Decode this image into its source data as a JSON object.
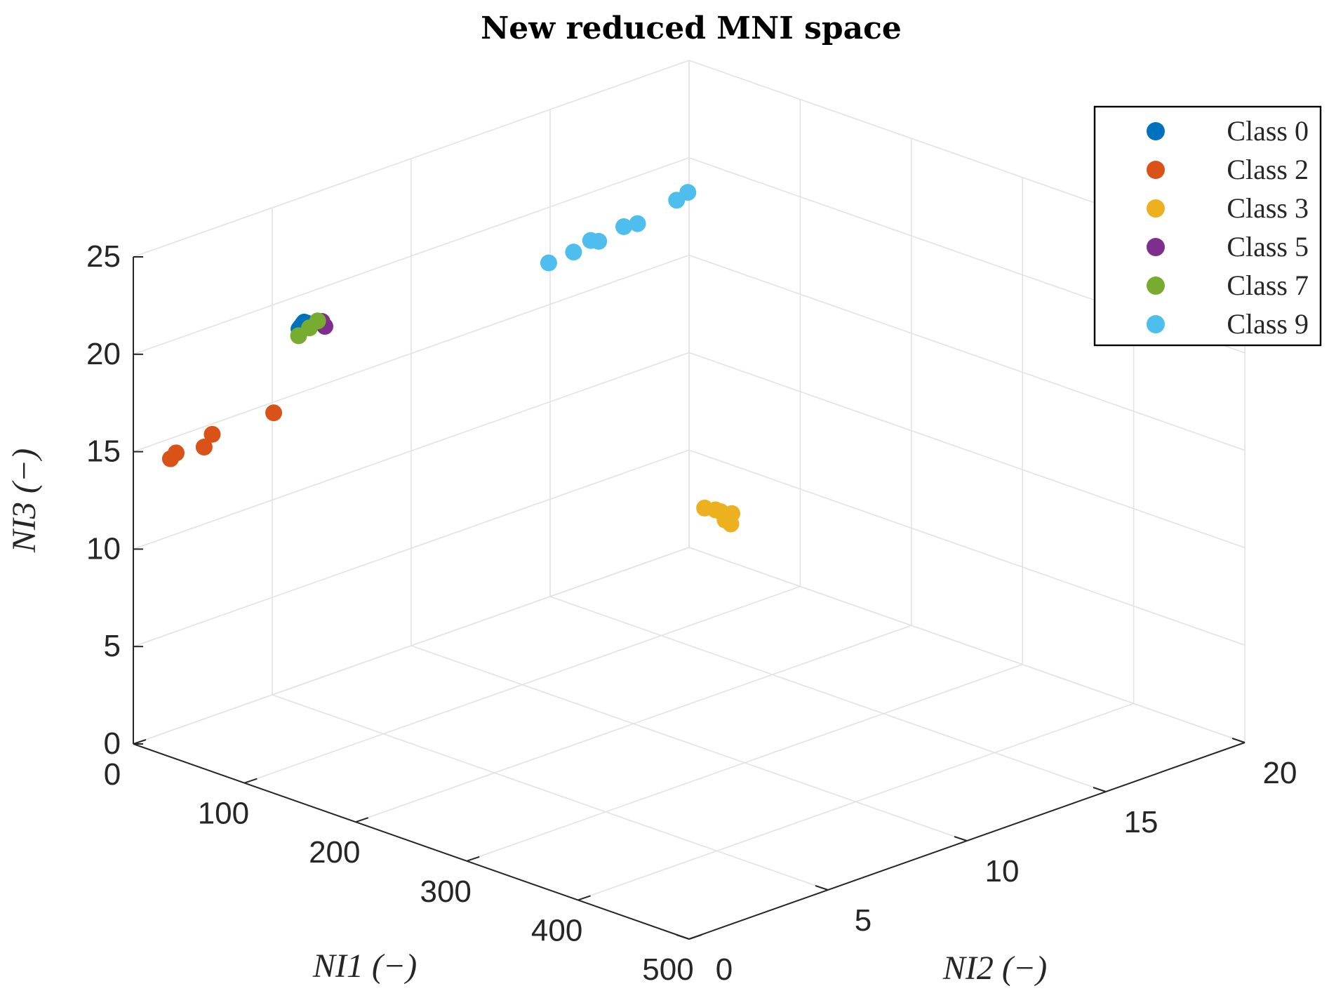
{
  "chart_data": {
    "type": "scatter3d",
    "title": "New reduced MNI space",
    "xlabel": "NI1 (−)",
    "ylabel": "NI2 (−)",
    "zlabel": "NI3 (−)",
    "xlim": [
      0,
      500
    ],
    "ylim": [
      0,
      20
    ],
    "zlim": [
      0,
      25
    ],
    "xticks": [
      0,
      100,
      200,
      300,
      400,
      500
    ],
    "yticks": [
      0,
      5,
      10,
      15,
      20
    ],
    "zticks": [
      0,
      5,
      10,
      15,
      20,
      25
    ],
    "grid": true,
    "legend_position": "top-right",
    "series": [
      {
        "name": "Class 0",
        "color": "#0072BD",
        "points": [
          [
            0.3,
            5.95,
            18.3
          ],
          [
            0.6,
            6.0,
            18.4
          ],
          [
            0.9,
            6.05,
            18.5
          ],
          [
            1.2,
            6.1,
            18.6
          ],
          [
            0.5,
            6.1,
            18.4
          ],
          [
            0.8,
            6.2,
            18.5
          ]
        ]
      },
      {
        "name": "Class 2",
        "color": "#D95319",
        "points": [
          [
            0.9,
            1.3,
            14.0
          ],
          [
            1.0,
            1.5,
            14.2
          ],
          [
            1.2,
            2.5,
            14.0
          ],
          [
            1.0,
            2.8,
            14.5
          ],
          [
            1.3,
            5.0,
            14.5
          ]
        ]
      },
      {
        "name": "Class 3",
        "color": "#EDB120",
        "points": [
          [
            1.5,
            20.5,
            1.8
          ],
          [
            1.3,
            20.9,
            1.5
          ],
          [
            1.0,
            21.1,
            1.3
          ],
          [
            1.2,
            21.25,
            0.8
          ],
          [
            1.0,
            21.5,
            1.0
          ],
          [
            1.3,
            21.45,
            0.5
          ]
        ]
      },
      {
        "name": "Class 5",
        "color": "#7E2F8E",
        "points": [
          [
            1.1,
            6.85,
            18.0
          ],
          [
            1.0,
            6.75,
            18.3
          ]
        ]
      },
      {
        "name": "Class 7",
        "color": "#77AC30",
        "points": [
          [
            1.2,
            5.9,
            18.0
          ],
          [
            1.0,
            6.3,
            18.2
          ],
          [
            0.8,
            6.6,
            18.4
          ]
        ]
      },
      {
        "name": "Class 9",
        "color": "#4DBEEE",
        "points": [
          [
            1.2,
            14.9,
            17.2
          ],
          [
            1.1,
            15.8,
            17.3
          ],
          [
            1.5,
            16.4,
            17.6
          ],
          [
            1.2,
            16.7,
            17.4
          ],
          [
            1.3,
            17.6,
            17.7
          ],
          [
            1.1,
            18.1,
            17.6
          ],
          [
            1.3,
            19.5,
            18.1
          ],
          [
            1.4,
            19.9,
            18.3
          ]
        ]
      }
    ]
  }
}
